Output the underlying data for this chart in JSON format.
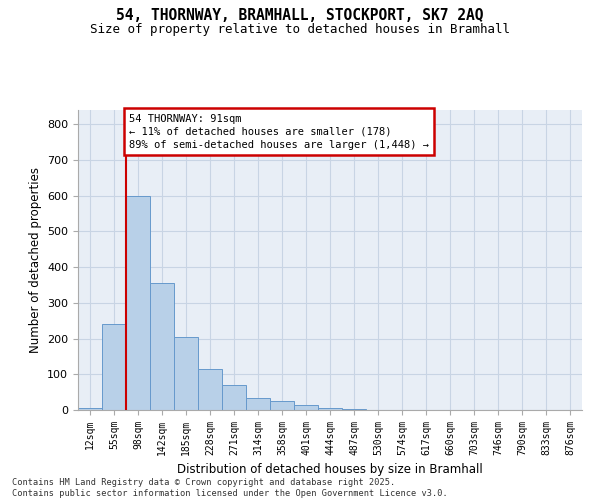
{
  "title_line1": "54, THORNWAY, BRAMHALL, STOCKPORT, SK7 2AQ",
  "title_line2": "Size of property relative to detached houses in Bramhall",
  "xlabel": "Distribution of detached houses by size in Bramhall",
  "ylabel": "Number of detached properties",
  "bin_labels": [
    "12sqm",
    "55sqm",
    "98sqm",
    "142sqm",
    "185sqm",
    "228sqm",
    "271sqm",
    "314sqm",
    "358sqm",
    "401sqm",
    "444sqm",
    "487sqm",
    "530sqm",
    "574sqm",
    "617sqm",
    "660sqm",
    "703sqm",
    "746sqm",
    "790sqm",
    "833sqm",
    "876sqm"
  ],
  "bar_values": [
    5,
    240,
    600,
    355,
    205,
    115,
    70,
    35,
    25,
    15,
    5,
    2,
    1,
    0,
    0,
    0,
    0,
    0,
    0,
    0,
    0
  ],
  "bar_color": "#b8d0e8",
  "bar_edge_color": "#6699cc",
  "grid_color": "#c8d4e4",
  "background_color": "#e8eef6",
  "ylim": [
    0,
    840
  ],
  "yticks": [
    0,
    100,
    200,
    300,
    400,
    500,
    600,
    700,
    800
  ],
  "annotation_title": "54 THORNWAY: 91sqm",
  "annotation_line1": "← 11% of detached houses are smaller (178)",
  "annotation_line2": "89% of semi-detached houses are larger (1,448) →",
  "annotation_box_color": "#ffffff",
  "annotation_border_color": "#cc0000",
  "vline_color": "#cc0000",
  "vline_x_index": 1.5,
  "footer_line1": "Contains HM Land Registry data © Crown copyright and database right 2025.",
  "footer_line2": "Contains public sector information licensed under the Open Government Licence v3.0."
}
